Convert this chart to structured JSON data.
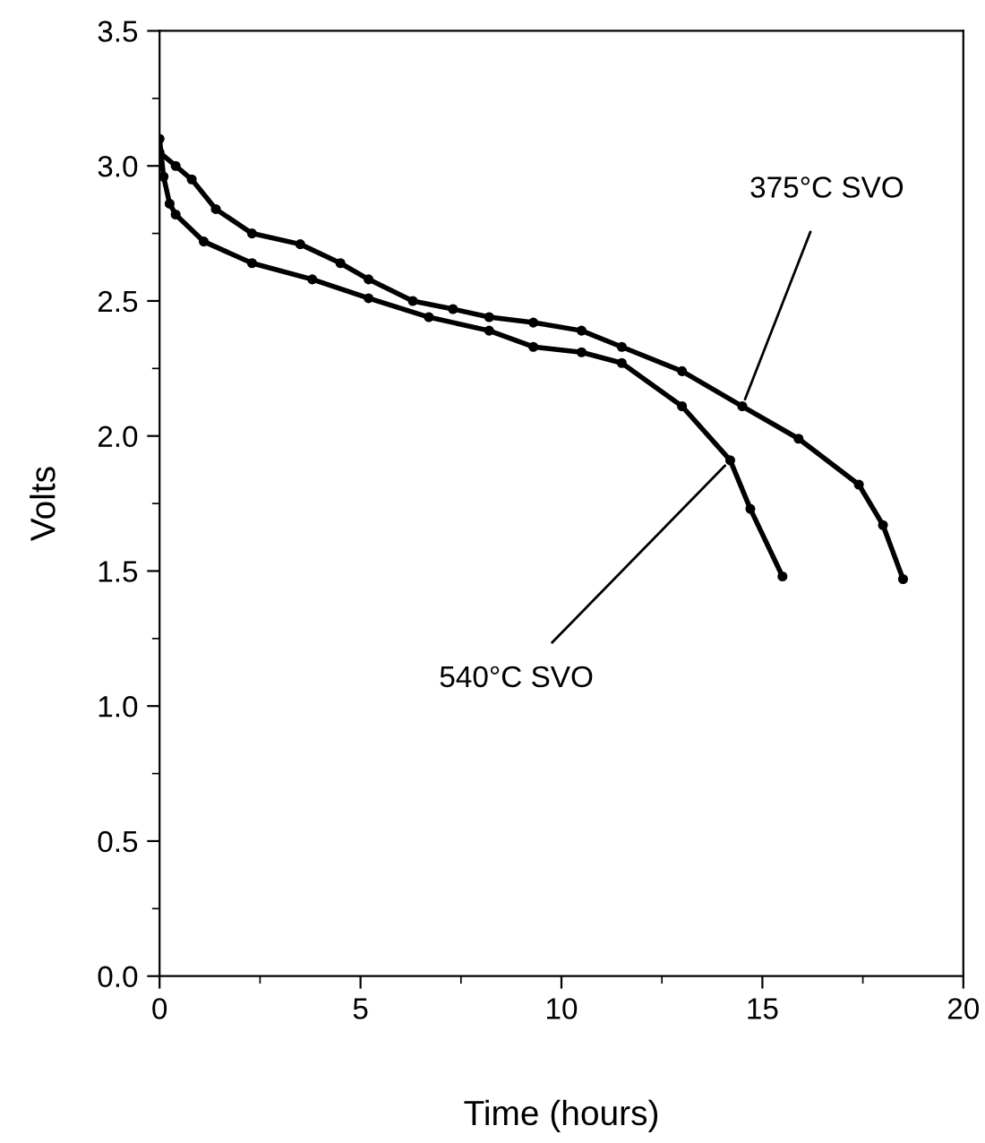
{
  "chart_data": {
    "type": "line",
    "xlabel": "Time (hours)",
    "ylabel": "Volts",
    "xlim": [
      0,
      20
    ],
    "xticks": [
      0,
      5,
      10,
      15,
      20
    ],
    "ylim": [
      0,
      3.5
    ],
    "yticks": [
      {
        "value": 0,
        "label": "0.0"
      },
      {
        "value": 0.5,
        "label": "0.5"
      },
      {
        "value": 1.0,
        "label": "1.0"
      },
      {
        "value": 1.5,
        "label": "1.5"
      },
      {
        "value": 2.0,
        "label": "2.0"
      },
      {
        "value": 2.5,
        "label": "2.5"
      },
      {
        "value": 3.0,
        "label": "3.0"
      },
      {
        "value": 3.5,
        "label": "3.5"
      }
    ],
    "marker": "circle",
    "grid": false,
    "legend": false,
    "series": [
      {
        "color": "#000000",
        "x": [
          0,
          0.4,
          0.8,
          1.4,
          2.3,
          3.5,
          4.5,
          5.2,
          6.3,
          7.3,
          8.2,
          9.3,
          10.5,
          11.5,
          13.0,
          14.5,
          15.9,
          17.4,
          18.0,
          18.5
        ],
        "values": [
          3.05,
          3.0,
          2.95,
          2.84,
          2.75,
          2.71,
          2.64,
          2.58,
          2.5,
          2.47,
          2.44,
          2.42,
          2.39,
          2.33,
          2.24,
          2.11,
          1.99,
          1.82,
          1.67,
          1.47
        ]
      },
      {
        "color": "#000000",
        "x": [
          0,
          0.1,
          0.25,
          0.4,
          1.1,
          2.3,
          3.8,
          5.2,
          6.7,
          8.2,
          9.3,
          10.5,
          11.5,
          13.0,
          14.2,
          14.7,
          15.5
        ],
        "values": [
          3.1,
          2.96,
          2.86,
          2.82,
          2.72,
          2.64,
          2.58,
          2.51,
          2.44,
          2.39,
          2.33,
          2.31,
          2.27,
          2.11,
          1.91,
          1.73,
          1.48
        ]
      }
    ],
    "annotations": [
      {
        "text": "375°C SVO",
        "x": 14.5,
        "y": 2.11
      },
      {
        "text": "540°C SVO",
        "x": 14.2,
        "y": 1.91
      }
    ]
  }
}
